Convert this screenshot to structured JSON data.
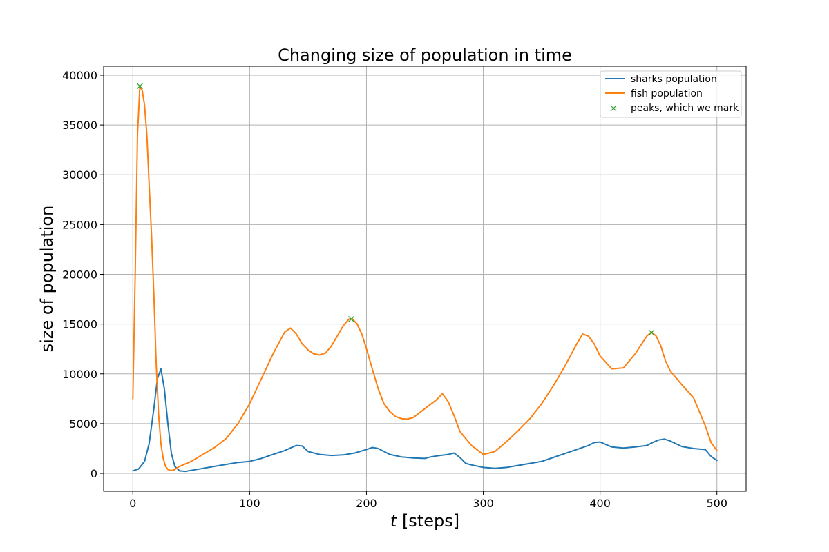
{
  "chart_data": {
    "type": "line",
    "title": "Changing size of population in time",
    "xlabel_italic": "t",
    "xlabel_rest": " [steps]",
    "ylabel": "size of population",
    "xlim": [
      -25,
      525
    ],
    "ylim": [
      -1800,
      40900
    ],
    "xticks": [
      0,
      100,
      200,
      300,
      400,
      500
    ],
    "yticks": [
      0,
      5000,
      10000,
      15000,
      20000,
      25000,
      30000,
      35000,
      40000
    ],
    "grid": true,
    "legend_position": "top-right",
    "series": [
      {
        "name": "sharks population",
        "color": "#1f77b4",
        "x": [
          0,
          5,
          10,
          14,
          18,
          21,
          24,
          27,
          30,
          33,
          36,
          40,
          45,
          50,
          60,
          70,
          80,
          90,
          100,
          110,
          120,
          130,
          135,
          140,
          145,
          150,
          160,
          170,
          180,
          190,
          200,
          205,
          210,
          220,
          230,
          240,
          250,
          255,
          260,
          270,
          275,
          280,
          285,
          290,
          300,
          310,
          320,
          330,
          340,
          350,
          360,
          370,
          380,
          390,
          395,
          400,
          410,
          420,
          430,
          440,
          445,
          450,
          455,
          460,
          470,
          480,
          490,
          495,
          500
        ],
        "y": [
          250,
          450,
          1200,
          3000,
          6500,
          9500,
          10500,
          8500,
          5000,
          2000,
          700,
          250,
          200,
          300,
          500,
          700,
          900,
          1100,
          1200,
          1500,
          1900,
          2300,
          2550,
          2800,
          2750,
          2200,
          1900,
          1800,
          1850,
          2050,
          2400,
          2600,
          2500,
          1900,
          1650,
          1550,
          1500,
          1650,
          1750,
          1900,
          2050,
          1600,
          1000,
          850,
          600,
          500,
          600,
          800,
          1000,
          1200,
          1600,
          2000,
          2400,
          2800,
          3100,
          3150,
          2650,
          2550,
          2650,
          2800,
          3100,
          3350,
          3450,
          3250,
          2700,
          2500,
          2400,
          1700,
          1300
        ]
      },
      {
        "name": "fish population",
        "color": "#ff7f0e",
        "x": [
          0,
          2,
          4,
          6,
          8,
          10,
          12,
          14,
          16,
          18,
          20,
          22,
          24,
          26,
          28,
          30,
          32,
          34,
          36,
          40,
          50,
          60,
          70,
          80,
          90,
          100,
          110,
          120,
          130,
          135,
          140,
          145,
          150,
          155,
          160,
          165,
          170,
          175,
          180,
          185,
          188,
          192,
          196,
          200,
          205,
          210,
          215,
          220,
          225,
          230,
          235,
          240,
          250,
          260,
          265,
          270,
          275,
          280,
          290,
          300,
          310,
          320,
          330,
          340,
          350,
          360,
          370,
          380,
          385,
          390,
          395,
          400,
          410,
          420,
          430,
          440,
          444,
          448,
          452,
          456,
          460,
          470,
          480,
          485,
          490,
          495,
          500
        ],
        "y": [
          7500,
          20000,
          34000,
          38800,
          38500,
          37000,
          34000,
          29000,
          24000,
          18000,
          11000,
          6000,
          3000,
          1500,
          700,
          400,
          300,
          300,
          400,
          700,
          1200,
          1900,
          2600,
          3500,
          5000,
          7000,
          9500,
          12000,
          14200,
          14600,
          14000,
          13000,
          12400,
          12000,
          11900,
          12100,
          12800,
          13800,
          14800,
          15500,
          15500,
          15000,
          14000,
          12500,
          10500,
          8500,
          7000,
          6200,
          5700,
          5500,
          5450,
          5600,
          6500,
          7400,
          8000,
          7200,
          5800,
          4200,
          2800,
          1900,
          2200,
          3200,
          4300,
          5500,
          7000,
          8800,
          10800,
          13000,
          14000,
          13800,
          13000,
          11800,
          10500,
          10600,
          12000,
          13800,
          14200,
          13800,
          12800,
          11300,
          10300,
          8900,
          7600,
          6200,
          4800,
          3100,
          2300
        ]
      }
    ],
    "peaks": {
      "name": "peaks, which we mark",
      "color": "#2ca02c",
      "x": [
        6,
        187,
        444
      ],
      "y": [
        38900,
        15500,
        14150
      ]
    }
  }
}
